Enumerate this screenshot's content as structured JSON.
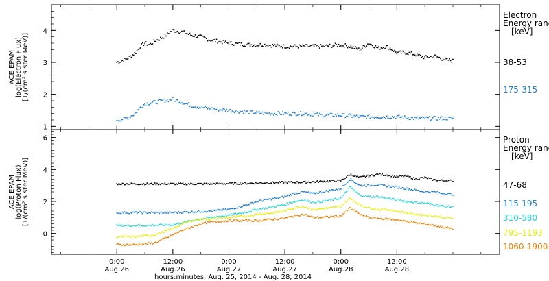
{
  "chart_data": [
    {
      "type": "scatter",
      "panel": "electron",
      "ylabel": [
        "ACE EPAM",
        "log(Electron Flux)",
        "[1/(cm² s ster MeV)]"
      ],
      "ylim": [
        0.9,
        4.8
      ],
      "yticks": [
        1,
        2,
        3,
        4
      ],
      "legend_title": [
        "Electron",
        "Energy range",
        "[keV]"
      ],
      "legend_placement": "right",
      "series": [
        {
          "name": "38-53",
          "color": "#000000",
          "x": [
            0,
            2,
            4,
            5,
            6,
            7,
            8,
            10,
            12,
            14,
            16,
            18,
            20,
            24,
            28,
            32,
            36,
            40,
            44,
            48,
            50,
            52,
            54,
            56,
            58,
            60,
            62,
            64,
            66,
            68,
            70,
            72
          ],
          "y": [
            3.0,
            3.1,
            3.3,
            3.5,
            3.6,
            3.55,
            3.65,
            3.8,
            4.0,
            3.95,
            3.85,
            3.8,
            3.7,
            3.6,
            3.55,
            3.55,
            3.5,
            3.5,
            3.5,
            3.55,
            3.5,
            3.4,
            3.6,
            3.45,
            3.5,
            3.3,
            3.3,
            3.25,
            3.15,
            3.2,
            3.1,
            3.05
          ]
        },
        {
          "name": "175-315",
          "color": "#1e7fd6",
          "x": [
            0,
            2,
            4,
            5,
            6,
            8,
            10,
            12,
            14,
            16,
            18,
            20,
            24,
            28,
            32,
            36,
            40,
            44,
            48,
            52,
            56,
            60,
            64,
            68,
            72
          ],
          "y": [
            1.2,
            1.25,
            1.4,
            1.6,
            1.7,
            1.75,
            1.8,
            1.85,
            1.75,
            1.65,
            1.6,
            1.55,
            1.5,
            1.45,
            1.4,
            1.4,
            1.4,
            1.35,
            1.35,
            1.3,
            1.3,
            1.3,
            1.25,
            1.25,
            1.25
          ]
        }
      ]
    },
    {
      "type": "scatter",
      "panel": "proton",
      "ylabel": [
        "ACE EPAM",
        "log(Proton Flux)",
        "[1/(cm² s ster MeV)]"
      ],
      "ylim": [
        -1.3,
        6.5
      ],
      "yticks": [
        0,
        2,
        4,
        6
      ],
      "legend_title": [
        "Proton",
        "Energy range",
        "[keV]"
      ],
      "legend_placement": "right",
      "series": [
        {
          "name": "47-68",
          "color": "#000000",
          "x": [
            0,
            6,
            12,
            18,
            24,
            30,
            36,
            40,
            44,
            48,
            50,
            52,
            54,
            56,
            58,
            60,
            62,
            64,
            66,
            68,
            70,
            72
          ],
          "y": [
            3.1,
            3.1,
            3.1,
            3.1,
            3.12,
            3.15,
            3.2,
            3.2,
            3.25,
            3.3,
            3.7,
            3.5,
            3.6,
            3.7,
            3.65,
            3.55,
            3.6,
            3.4,
            3.5,
            3.35,
            3.3,
            3.3
          ]
        },
        {
          "name": "115-195",
          "color": "#1e7fd6",
          "x": [
            0,
            6,
            12,
            16,
            20,
            24,
            28,
            30,
            32,
            34,
            36,
            38,
            40,
            42,
            44,
            46,
            48,
            50,
            52,
            54,
            56,
            58,
            60,
            62,
            64,
            66,
            68,
            70,
            72
          ],
          "y": [
            1.3,
            1.3,
            1.3,
            1.35,
            1.4,
            1.5,
            1.8,
            2.0,
            2.1,
            2.2,
            2.3,
            2.5,
            2.6,
            2.5,
            2.6,
            2.7,
            2.8,
            3.4,
            3.0,
            3.0,
            3.05,
            2.95,
            2.9,
            2.8,
            2.7,
            2.6,
            2.6,
            2.5,
            2.45
          ]
        },
        {
          "name": "310-580",
          "color": "#1ed8d8",
          "x": [
            0,
            6,
            12,
            16,
            20,
            24,
            28,
            30,
            32,
            34,
            36,
            38,
            40,
            42,
            44,
            46,
            48,
            50,
            52,
            54,
            56,
            58,
            60,
            62,
            64,
            66,
            68,
            70,
            72
          ],
          "y": [
            0.5,
            0.5,
            0.55,
            0.8,
            1.0,
            1.15,
            1.35,
            1.5,
            1.6,
            1.7,
            1.8,
            2.0,
            2.1,
            1.95,
            2.0,
            2.1,
            2.2,
            2.9,
            2.4,
            2.3,
            2.3,
            2.2,
            2.1,
            2.0,
            1.95,
            1.9,
            1.8,
            1.7,
            1.65
          ]
        },
        {
          "name": "795-1193",
          "color": "#e6f000",
          "x": [
            0,
            4,
            8,
            12,
            14,
            16,
            18,
            20,
            24,
            28,
            30,
            32,
            34,
            36,
            38,
            40,
            42,
            44,
            46,
            48,
            50,
            52,
            54,
            56,
            58,
            60,
            62,
            64,
            66,
            68,
            70,
            72
          ],
          "y": [
            -0.2,
            -0.2,
            -0.1,
            0.3,
            0.6,
            0.8,
            0.9,
            0.9,
            1.0,
            1.1,
            1.2,
            1.25,
            1.3,
            1.4,
            1.6,
            1.7,
            1.5,
            1.55,
            1.6,
            1.7,
            2.2,
            1.8,
            1.6,
            1.5,
            1.5,
            1.4,
            1.3,
            1.2,
            1.15,
            1.1,
            1.0,
            0.95
          ]
        },
        {
          "name": "1060-1900",
          "color": "#f08000",
          "x": [
            0,
            4,
            8,
            12,
            14,
            16,
            18,
            20,
            24,
            28,
            30,
            32,
            34,
            36,
            38,
            40,
            42,
            44,
            46,
            48,
            50,
            52,
            54,
            56,
            58,
            60,
            62,
            64,
            66,
            68,
            70,
            72
          ],
          "y": [
            -0.7,
            -0.7,
            -0.6,
            -0.1,
            0.2,
            0.4,
            0.6,
            0.7,
            0.8,
            0.8,
            0.8,
            0.85,
            0.9,
            0.95,
            1.1,
            1.2,
            1.0,
            1.0,
            1.05,
            1.1,
            1.6,
            1.2,
            1.0,
            0.95,
            0.9,
            0.85,
            0.75,
            0.65,
            0.6,
            0.5,
            0.4,
            0.3
          ]
        }
      ]
    }
  ],
  "x_axis": {
    "xlim": [
      -14,
      82
    ],
    "ticks": [
      {
        "x": 0,
        "line1": "0:00",
        "line2": "Aug.26"
      },
      {
        "x": 12,
        "line1": "12:00",
        "line2": "Aug.26"
      },
      {
        "x": 24,
        "line1": "0:00",
        "line2": "Aug.27"
      },
      {
        "x": 36,
        "line1": "12:00",
        "line2": "Aug.27"
      },
      {
        "x": 48,
        "line1": "0:00",
        "line2": "Aug.28"
      },
      {
        "x": 60,
        "line1": "12:00",
        "line2": "Aug.28"
      }
    ],
    "xlabel": "hours:minutes, Aug. 25, 2014 - Aug. 28, 2014"
  }
}
